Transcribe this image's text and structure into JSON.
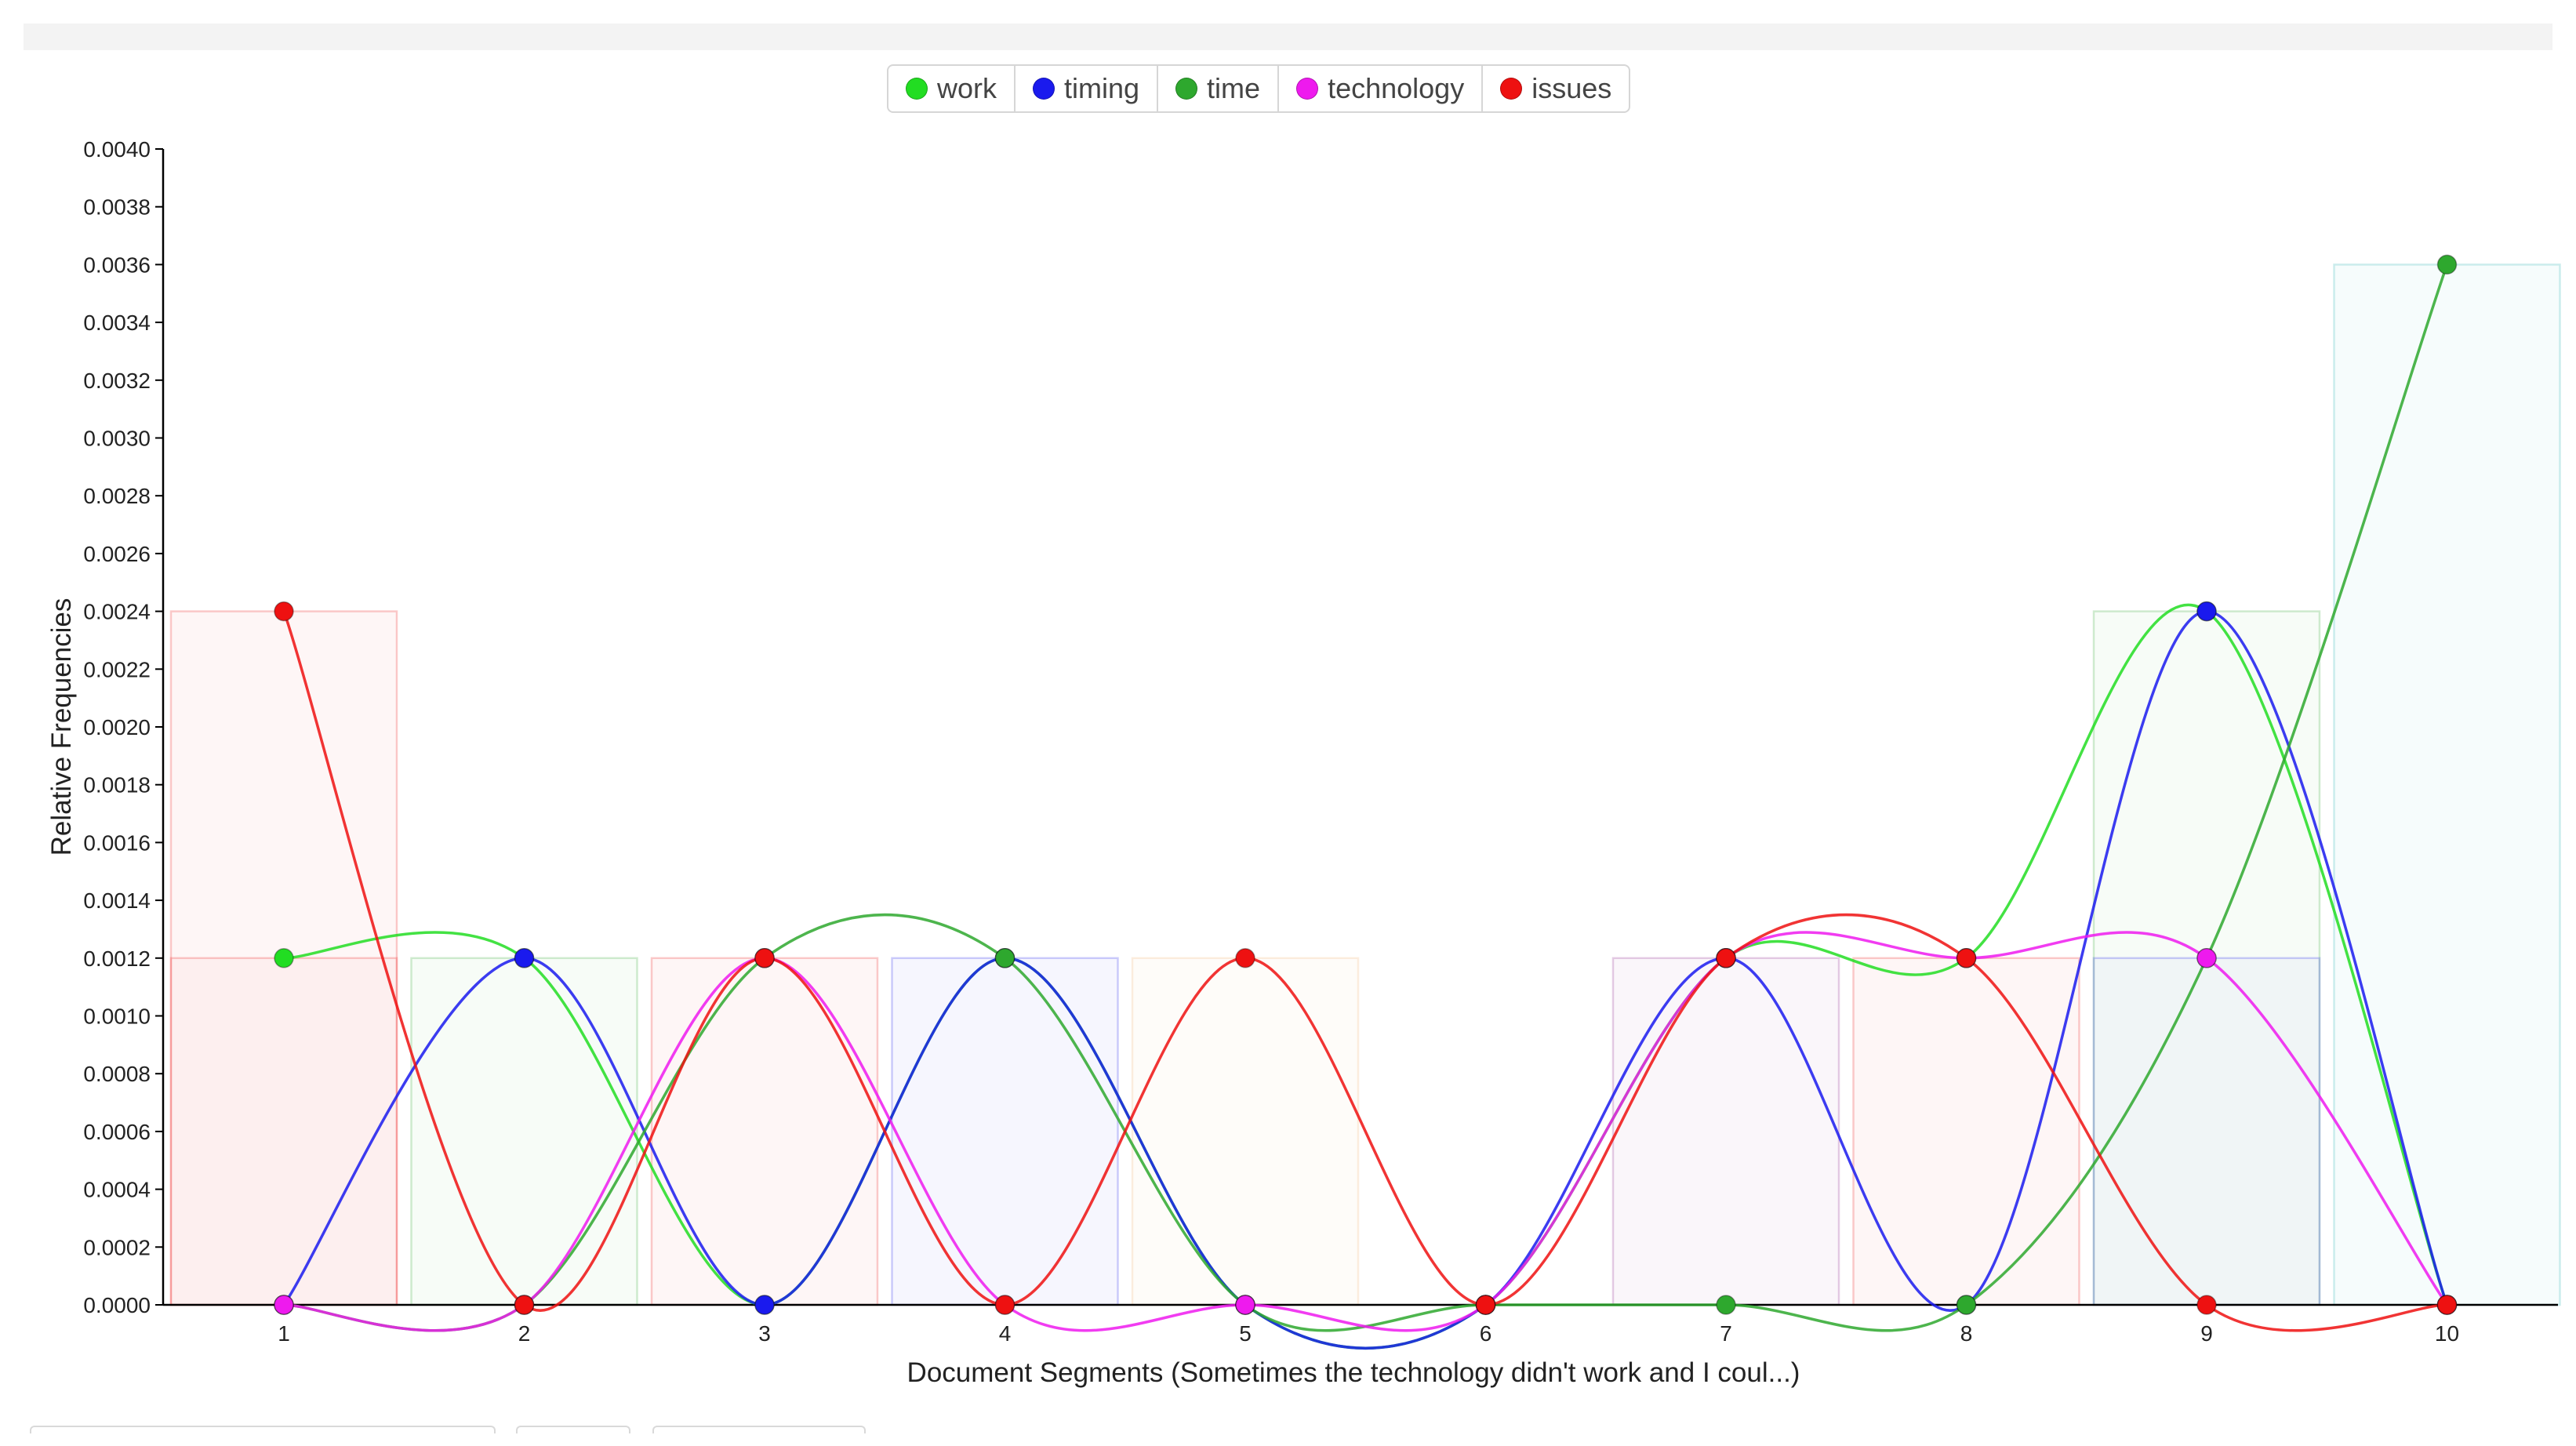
{
  "chart_data": {
    "type": "line",
    "xlabel": "Document Segments (Sometimes the technology didn't work and I coul...)",
    "ylabel": "Relative Frequencies",
    "x": [
      1,
      2,
      3,
      4,
      5,
      6,
      7,
      8,
      9,
      10
    ],
    "ylim": [
      0,
      0.004
    ],
    "yticks": [
      "0.0000",
      "0.0002",
      "0.0004",
      "0.0006",
      "0.0008",
      "0.0010",
      "0.0012",
      "0.0014",
      "0.0016",
      "0.0018",
      "0.0020",
      "0.0022",
      "0.0024",
      "0.0026",
      "0.0028",
      "0.0030",
      "0.0032",
      "0.0034",
      "0.0036",
      "0.0038",
      "0.0040"
    ],
    "legend_position": "top-center",
    "grid": false,
    "curve": "smooth",
    "series": [
      {
        "name": "work",
        "color": "#22dd22",
        "values": [
          0.0012,
          0.0012,
          0,
          0.0012,
          0,
          0,
          0.0012,
          0.0012,
          0.0024,
          0
        ]
      },
      {
        "name": "timing",
        "color": "#1a1aee",
        "values": [
          0,
          0.0012,
          0,
          0.0012,
          0,
          0,
          0.0012,
          0,
          0.0024,
          0
        ]
      },
      {
        "name": "time",
        "color": "#2ea82e",
        "values": [
          0,
          0,
          0.0012,
          0.0012,
          0,
          0,
          0,
          0,
          0.0012,
          0.0036
        ]
      },
      {
        "name": "technology",
        "color": "#ee1aee",
        "values": [
          0,
          0,
          0.0012,
          0,
          0,
          0,
          0.0012,
          0.0012,
          0.0012,
          0
        ]
      },
      {
        "name": "issues",
        "color": "#ee1111",
        "values": [
          0.0024,
          0,
          0.0012,
          0,
          0.0012,
          0,
          0.0012,
          0.0012,
          0,
          0
        ]
      }
    ],
    "bars": {
      "values": [
        0.0024,
        0.0012,
        0.0012,
        0.0012,
        0.0012,
        0,
        0.0012,
        0.0012,
        0.0024,
        0.0036
      ],
      "colors": [
        "#ee1111",
        "#2ea82e",
        "#ee1111",
        "#1a1aee",
        "#f0b070",
        "#cccccc",
        "#8a1a8a",
        "#ee1111",
        "#2ea82e",
        "#20b0b0"
      ],
      "overlays": [
        {
          "x": 1,
          "value": 0.0012,
          "color": "#ee1111"
        },
        {
          "x": 9,
          "value": 0.0012,
          "color": "#1a1aee"
        }
      ]
    }
  }
}
